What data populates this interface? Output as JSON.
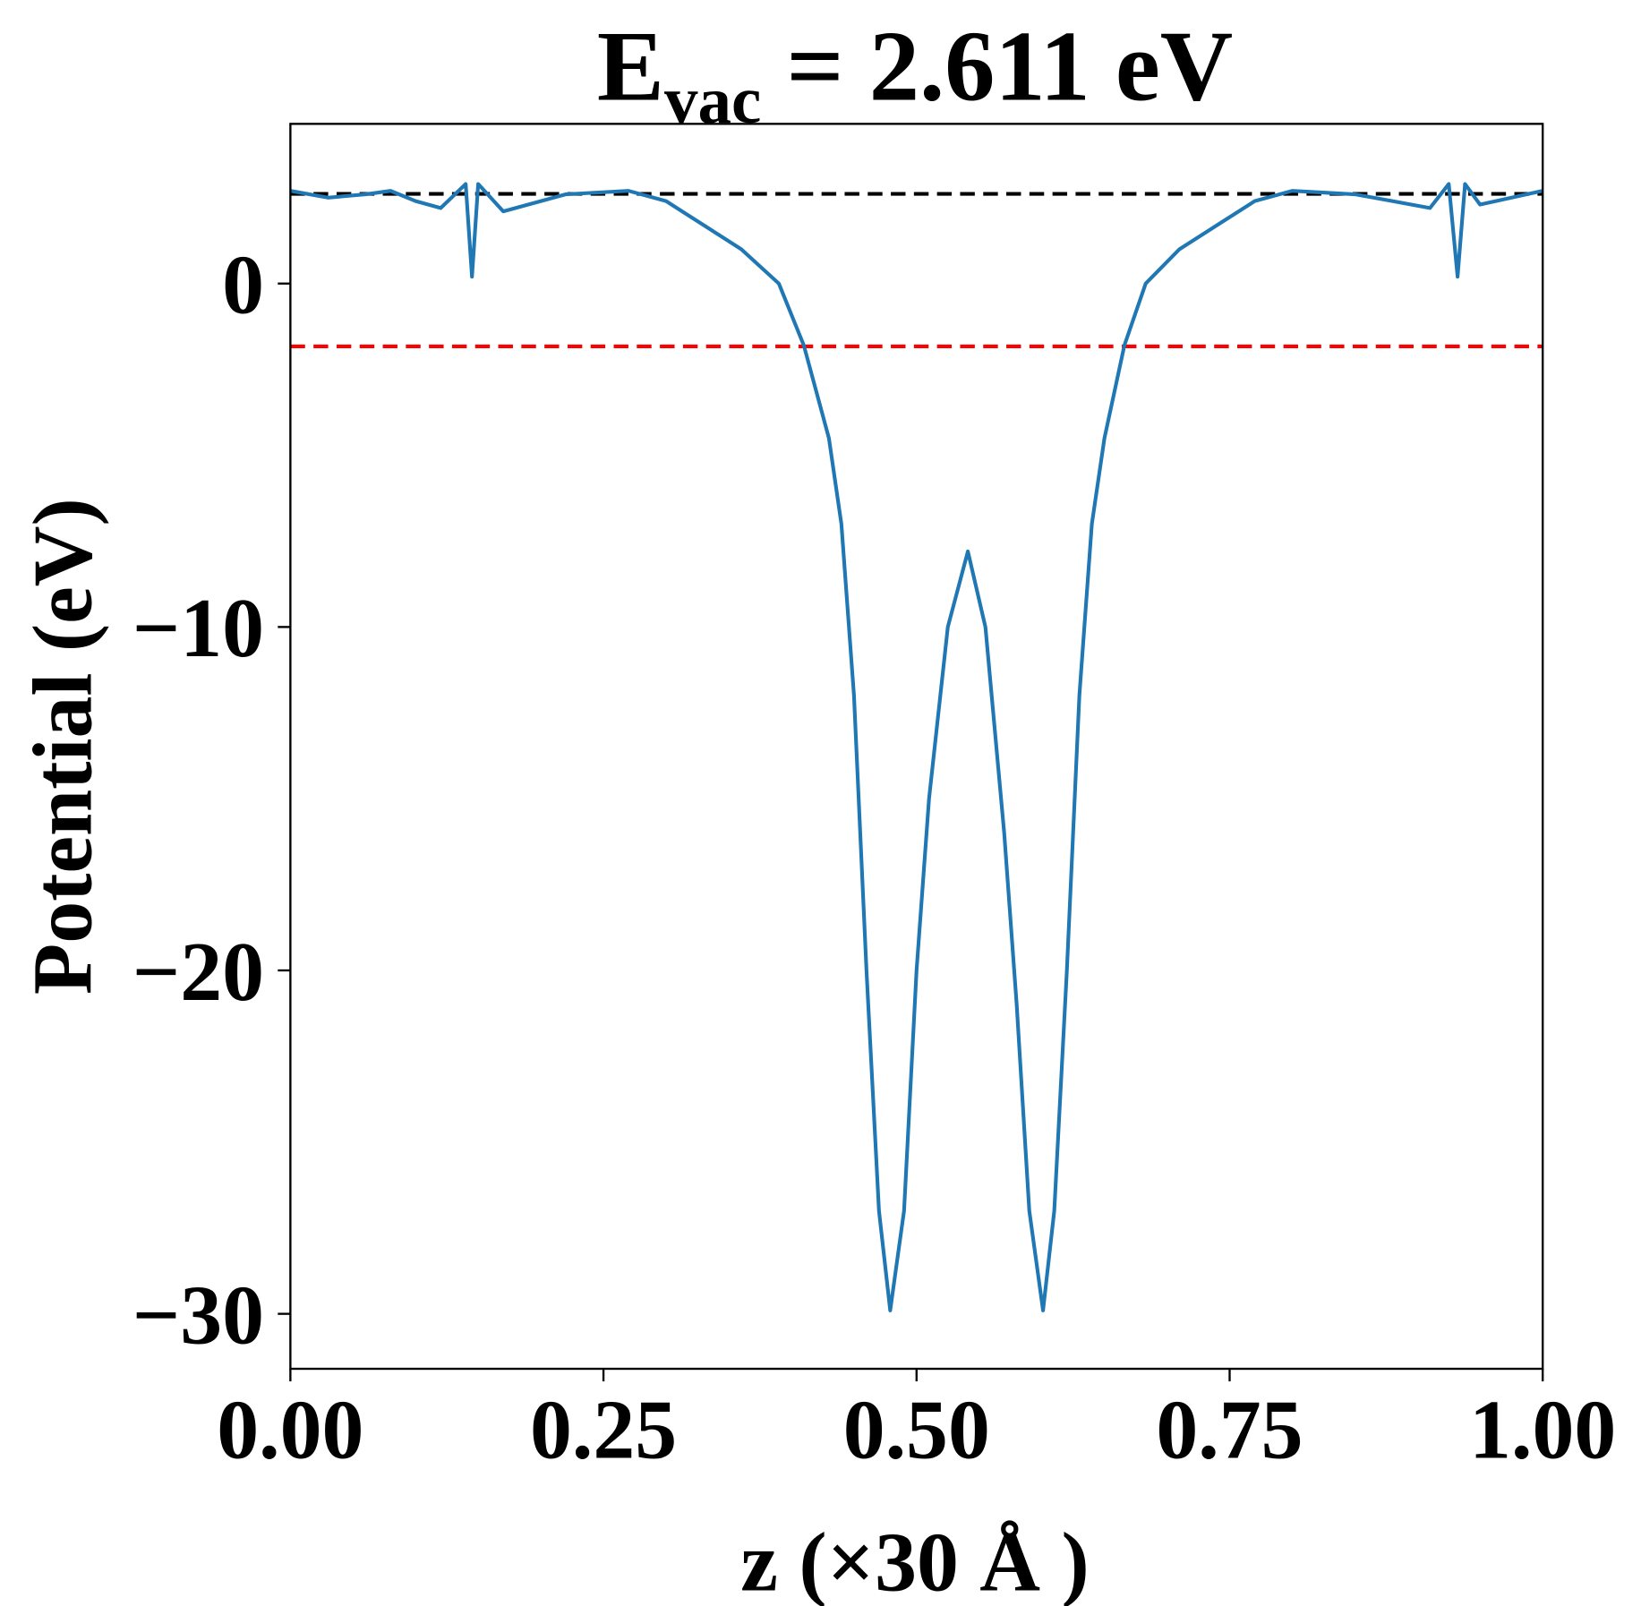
{
  "chart_data": {
    "type": "line",
    "title": [
      "E",
      "vac",
      " = 2.611 eV"
    ],
    "xlabel": "z (×30 Å )",
    "ylabel": "Potential (eV)",
    "xlim": [
      0,
      1
    ],
    "ylim": [
      -31.6,
      4.65
    ],
    "xticks": [
      {
        "value": 0,
        "label": "0.00"
      },
      {
        "value": 0.25,
        "label": "0.25"
      },
      {
        "value": 0.5,
        "label": "0.50"
      },
      {
        "value": 0.75,
        "label": "0.75"
      },
      {
        "value": 1,
        "label": "1.00"
      }
    ],
    "yticks": [
      {
        "value": 0,
        "label": "0"
      },
      {
        "value": -10,
        "label": "−10"
      },
      {
        "value": -20,
        "label": "−20"
      },
      {
        "value": -30,
        "label": "−30"
      }
    ],
    "grid": false,
    "series": [
      {
        "color": "#1f77b4",
        "x": [
          0,
          0.03,
          0.06,
          0.08,
          0.1,
          0.12,
          0.14,
          0.145,
          0.15,
          0.17,
          0.22,
          0.27,
          0.3,
          0.33,
          0.36,
          0.39,
          0.41,
          0.43,
          0.44,
          0.45,
          0.46,
          0.47,
          0.479,
          0.49,
          0.5,
          0.51,
          0.525,
          0.541,
          0.555,
          0.57,
          0.58,
          0.59,
          0.601,
          0.61,
          0.62,
          0.63,
          0.64,
          0.65,
          0.666,
          0.683,
          0.71,
          0.74,
          0.77,
          0.8,
          0.85,
          0.88,
          0.91,
          0.925,
          0.932,
          0.938,
          0.95,
          1.0
        ],
        "values": [
          2.7,
          2.5,
          2.6,
          2.7,
          2.4,
          2.2,
          2.9,
          0.2,
          2.9,
          2.1,
          2.6,
          2.7,
          2.4,
          1.7,
          1.0,
          0,
          -1.8,
          -4.5,
          -7,
          -12,
          -20,
          -27,
          -29.9,
          -27,
          -20,
          -15,
          -10,
          -7.8,
          -10,
          -16,
          -21,
          -27,
          -29.9,
          -27,
          -20,
          -12,
          -7,
          -4.5,
          -1.8,
          0,
          1.0,
          1.7,
          2.4,
          2.7,
          2.6,
          2.4,
          2.2,
          2.9,
          0.2,
          2.9,
          2.3,
          2.7
        ]
      }
    ],
    "hlines": [
      {
        "value": 2.611,
        "color": "#000000"
      },
      {
        "value": -1.83,
        "color": "#ff0000"
      }
    ]
  }
}
